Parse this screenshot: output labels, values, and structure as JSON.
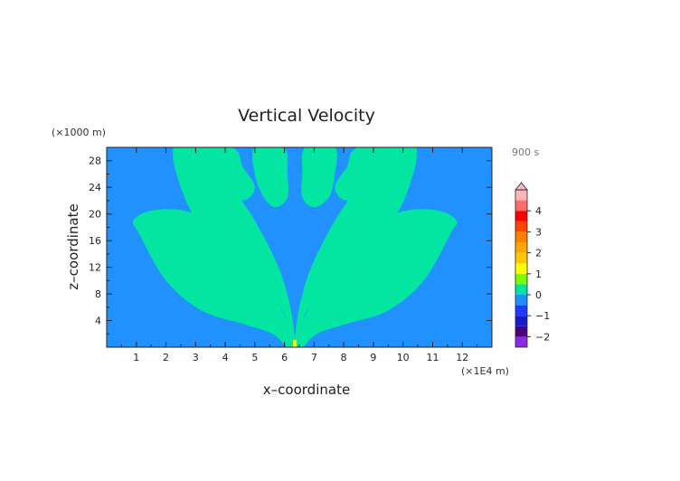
{
  "chart_data": {
    "type": "heatmap",
    "title": "Vertical Velocity",
    "xlabel": "x–coordinate",
    "ylabel": "z–coordinate",
    "x_units": "(×1E4 m)",
    "y_units": "(×1000 m)",
    "time_label": "900 s",
    "xlim": [
      0,
      13
    ],
    "ylim": [
      0,
      30
    ],
    "x_ticks": [
      1,
      2,
      3,
      4,
      5,
      6,
      7,
      8,
      9,
      10,
      11,
      12
    ],
    "y_ticks": [
      4,
      8,
      12,
      16,
      20,
      24,
      28
    ],
    "colorbar": {
      "tick_labels": [
        "4",
        "3",
        "2",
        "1",
        "0",
        "−1",
        "−2"
      ],
      "tick_values": [
        4,
        3,
        2,
        1,
        0,
        -1,
        -2
      ],
      "range": [
        -2.5,
        5
      ],
      "levels": [
        {
          "min": -2.5,
          "max": -2.0,
          "color": "#8a2be2"
        },
        {
          "min": -2.0,
          "max": -1.5,
          "color": "#4b0082"
        },
        {
          "min": -1.5,
          "max": -1.0,
          "color": "#1a1acd"
        },
        {
          "min": -1.0,
          "max": -0.5,
          "color": "#1e3cff"
        },
        {
          "min": -0.5,
          "max": 0.0,
          "color": "#1e90ff"
        },
        {
          "min": 0.0,
          "max": 0.5,
          "color": "#00e5a0"
        },
        {
          "min": 0.5,
          "max": 1.0,
          "color": "#7cfc00"
        },
        {
          "min": 1.0,
          "max": 1.5,
          "color": "#ffff00"
        },
        {
          "min": 1.5,
          "max": 2.0,
          "color": "#ffc800"
        },
        {
          "min": 2.0,
          "max": 2.5,
          "color": "#ffa500"
        },
        {
          "min": 2.5,
          "max": 3.0,
          "color": "#ff7f00"
        },
        {
          "min": 3.0,
          "max": 3.5,
          "color": "#ff4500"
        },
        {
          "min": 3.5,
          "max": 4.0,
          "color": "#ff0000"
        },
        {
          "min": 4.0,
          "max": 4.5,
          "color": "#ff6a6a"
        },
        {
          "min": 4.5,
          "max": 5.0,
          "color": "#ffb6b6"
        }
      ]
    },
    "field": {
      "background_color": "#1e90ff",
      "positive_color": "#00e5a0",
      "source_color": "#ffff00",
      "source_x": 6.35,
      "source_z": 0.5,
      "plumes": [
        {
          "name": "outer-left",
          "points": [
            [
              6.1,
              0
            ],
            [
              5.6,
              2
            ],
            [
              4.6,
              3.5
            ],
            [
              3.2,
              5.5
            ],
            [
              2.0,
              10
            ],
            [
              1.1,
              17
            ],
            [
              0.9,
              19
            ],
            [
              1.5,
              20.5
            ],
            [
              2.6,
              20.5
            ],
            [
              3.6,
              18.5
            ],
            [
              4.9,
              13
            ],
            [
              5.6,
              8
            ],
            [
              6.2,
              3
            ],
            [
              6.35,
              0.5
            ]
          ]
        },
        {
          "name": "outer-right",
          "points": [
            [
              6.6,
              0
            ],
            [
              7.1,
              2
            ],
            [
              8.1,
              3.5
            ],
            [
              9.5,
              5.5
            ],
            [
              10.7,
              10
            ],
            [
              11.6,
              17
            ],
            [
              11.8,
              19
            ],
            [
              11.2,
              20.5
            ],
            [
              10.1,
              20.5
            ],
            [
              9.1,
              18.5
            ],
            [
              7.8,
              13
            ],
            [
              7.1,
              8
            ],
            [
              6.5,
              3
            ],
            [
              6.35,
              0.5
            ]
          ]
        },
        {
          "name": "inner-left",
          "points": [
            [
              6.25,
              1
            ],
            [
              6.0,
              5
            ],
            [
              5.3,
              9
            ],
            [
              4.3,
              14
            ],
            [
              3.2,
              18
            ],
            [
              2.5,
              24
            ],
            [
              2.3,
              30
            ],
            [
              3.6,
              30
            ],
            [
              4.1,
              25
            ],
            [
              5.0,
              19
            ],
            [
              5.8,
              12
            ],
            [
              6.2,
              6
            ],
            [
              6.35,
              1
            ]
          ]
        },
        {
          "name": "inner-right",
          "points": [
            [
              6.45,
              1
            ],
            [
              6.7,
              5
            ],
            [
              7.4,
              9
            ],
            [
              8.4,
              14
            ],
            [
              9.5,
              18
            ],
            [
              10.2,
              24
            ],
            [
              10.4,
              30
            ],
            [
              9.1,
              30
            ],
            [
              8.6,
              25
            ],
            [
              7.7,
              19
            ],
            [
              6.9,
              12
            ],
            [
              6.5,
              6
            ],
            [
              6.35,
              1
            ]
          ]
        },
        {
          "name": "central-left",
          "points": [
            [
              5.0,
              30
            ],
            [
              5.0,
              26
            ],
            [
              5.3,
              22.5
            ],
            [
              5.7,
              21
            ],
            [
              6.1,
              22.5
            ],
            [
              6.1,
              26
            ],
            [
              6.0,
              30
            ]
          ]
        },
        {
          "name": "central-right",
          "points": [
            [
              6.7,
              30
            ],
            [
              6.6,
              26
            ],
            [
              6.6,
              22.5
            ],
            [
              7.0,
              21
            ],
            [
              7.5,
              22.5
            ],
            [
              7.7,
              26
            ],
            [
              7.7,
              30
            ]
          ]
        },
        {
          "name": "side-left",
          "points": [
            [
              2.3,
              30
            ],
            [
              2.7,
              26
            ],
            [
              3.6,
              23
            ],
            [
              4.6,
              22
            ],
            [
              5.0,
              24
            ],
            [
              4.6,
              27
            ],
            [
              4.2,
              30
            ]
          ]
        },
        {
          "name": "side-right",
          "points": [
            [
              10.4,
              30
            ],
            [
              10.0,
              26
            ],
            [
              9.1,
              23
            ],
            [
              8.1,
              22
            ],
            [
              7.7,
              24
            ],
            [
              8.1,
              27
            ],
            [
              8.5,
              30
            ]
          ]
        }
      ]
    }
  }
}
